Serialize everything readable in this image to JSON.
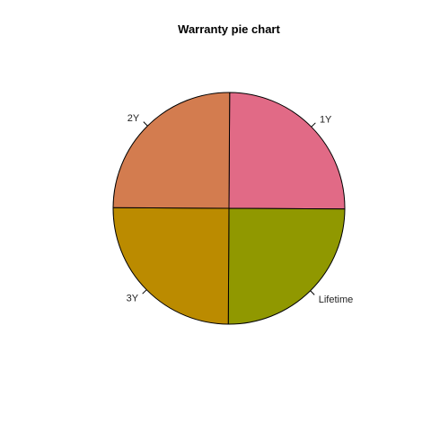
{
  "chart_data": {
    "type": "pie",
    "title": "Warranty pie chart",
    "categories": [
      "1Y",
      "Lifetime",
      "3Y",
      "2Y"
    ],
    "values": [
      25,
      25,
      25,
      25
    ],
    "colors": [
      "#E16A86",
      "#909800",
      "#BB8B00",
      "#D37C4F"
    ]
  }
}
